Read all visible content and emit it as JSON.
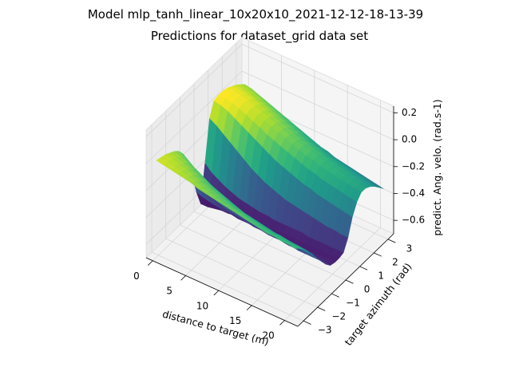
{
  "chart_data": {
    "type": "surface",
    "title": "Model mlp_tanh_linear_10x20x10_2021-12-12-18-13-39",
    "subtitle": "Predictions for dataset_grid data set",
    "xlabel": "distance to target (m)",
    "ylabel": "target azimuth (rad)",
    "zlabel": "predict. Ang. velo. (rad.s-1)",
    "xlim": [
      -1,
      22
    ],
    "ylim": [
      -3.4,
      3.4
    ],
    "zlim": [
      -0.7,
      0.25
    ],
    "x_ticks": [
      0,
      5,
      10,
      15,
      20
    ],
    "y_ticks": [
      -3,
      -2,
      -1,
      0,
      1,
      2,
      3
    ],
    "z_ticks": [
      -0.6,
      -0.4,
      -0.2,
      0.0,
      0.2
    ],
    "x_tick_labels": [
      "0",
      "5",
      "10",
      "15",
      "20"
    ],
    "y_tick_labels": [
      "−3",
      "−2",
      "−1",
      "0",
      "1",
      "2",
      "3"
    ],
    "z_tick_labels": [
      "−0.6",
      "−0.4",
      "−0.2",
      "0.0",
      "0.2"
    ],
    "x": [
      0,
      1.05,
      2.1,
      3.15,
      4.2,
      5.25,
      6.3,
      7.35,
      8.4,
      9.45,
      10.5,
      11.55,
      12.6,
      13.65,
      14.7,
      15.75,
      16.8,
      17.85,
      18.9,
      19.95,
      21
    ],
    "y": [
      -3.14,
      -2.83,
      -2.51,
      -2.2,
      -1.88,
      -1.57,
      -1.26,
      -0.94,
      -0.63,
      -0.31,
      0.0,
      0.31,
      0.63,
      0.94,
      1.26,
      1.57,
      1.88,
      2.2,
      2.51,
      2.83,
      3.14
    ],
    "z": [
      [
        0.02,
        0.01,
        0.0,
        -0.02,
        -0.04,
        -0.07,
        -0.12,
        -0.2,
        -0.33,
        -0.5,
        -0.62,
        -0.35,
        -0.05,
        0.05,
        0.06,
        0.06,
        0.05,
        0.03,
        0.01,
        -0.02,
        -0.05
      ],
      [
        0.01,
        0.0,
        -0.01,
        -0.03,
        -0.06,
        -0.1,
        -0.16,
        -0.25,
        -0.38,
        -0.52,
        -0.62,
        -0.4,
        -0.08,
        0.04,
        0.06,
        0.06,
        0.05,
        0.03,
        0.0,
        -0.03,
        -0.06
      ],
      [
        0.0,
        -0.01,
        -0.03,
        -0.05,
        -0.08,
        -0.13,
        -0.2,
        -0.29,
        -0.41,
        -0.53,
        -0.61,
        -0.43,
        -0.12,
        0.02,
        0.05,
        0.05,
        0.04,
        0.02,
        -0.01,
        -0.04,
        -0.08
      ],
      [
        -0.01,
        -0.02,
        -0.04,
        -0.07,
        -0.11,
        -0.16,
        -0.23,
        -0.33,
        -0.44,
        -0.54,
        -0.6,
        -0.46,
        -0.16,
        -0.01,
        0.03,
        0.04,
        0.03,
        0.01,
        -0.03,
        -0.06,
        -0.1
      ],
      [
        -0.02,
        -0.04,
        -0.06,
        -0.09,
        -0.13,
        -0.19,
        -0.26,
        -0.36,
        -0.46,
        -0.55,
        -0.6,
        -0.48,
        -0.2,
        -0.04,
        0.01,
        0.02,
        0.01,
        -0.01,
        -0.04,
        -0.08,
        -0.12
      ],
      [
        -0.03,
        -0.05,
        -0.08,
        -0.11,
        -0.16,
        -0.22,
        -0.29,
        -0.38,
        -0.48,
        -0.55,
        -0.59,
        -0.5,
        -0.24,
        -0.07,
        -0.02,
        0.0,
        -0.01,
        -0.03,
        -0.06,
        -0.1,
        -0.14
      ],
      [
        -0.05,
        -0.07,
        -0.1,
        -0.14,
        -0.18,
        -0.24,
        -0.32,
        -0.41,
        -0.49,
        -0.56,
        -0.59,
        -0.51,
        -0.28,
        -0.1,
        -0.04,
        -0.02,
        -0.03,
        -0.05,
        -0.08,
        -0.12,
        -0.16
      ],
      [
        -0.06,
        -0.08,
        -0.11,
        -0.15,
        -0.2,
        -0.27,
        -0.34,
        -0.43,
        -0.5,
        -0.56,
        -0.58,
        -0.52,
        -0.31,
        -0.13,
        -0.07,
        -0.04,
        -0.05,
        -0.07,
        -0.1,
        -0.14,
        -0.18
      ],
      [
        -0.07,
        -0.1,
        -0.13,
        -0.17,
        -0.22,
        -0.29,
        -0.36,
        -0.44,
        -0.51,
        -0.56,
        -0.58,
        -0.53,
        -0.34,
        -0.16,
        -0.09,
        -0.06,
        -0.07,
        -0.09,
        -0.12,
        -0.16,
        -0.2
      ],
      [
        -0.08,
        -0.11,
        -0.14,
        -0.19,
        -0.24,
        -0.31,
        -0.38,
        -0.45,
        -0.52,
        -0.56,
        -0.57,
        -0.53,
        -0.36,
        -0.19,
        -0.11,
        -0.08,
        -0.09,
        -0.11,
        -0.14,
        -0.18,
        -0.22
      ],
      [
        -0.09,
        -0.12,
        -0.16,
        -0.2,
        -0.26,
        -0.32,
        -0.39,
        -0.46,
        -0.52,
        -0.56,
        -0.57,
        -0.54,
        -0.38,
        -0.21,
        -0.13,
        -0.1,
        -0.11,
        -0.13,
        -0.16,
        -0.2,
        -0.24
      ],
      [
        -0.1,
        -0.13,
        -0.17,
        -0.22,
        -0.27,
        -0.33,
        -0.4,
        -0.47,
        -0.53,
        -0.56,
        -0.57,
        -0.54,
        -0.4,
        -0.23,
        -0.15,
        -0.12,
        -0.12,
        -0.14,
        -0.18,
        -0.22,
        -0.26
      ],
      [
        -0.11,
        -0.14,
        -0.18,
        -0.23,
        -0.28,
        -0.34,
        -0.41,
        -0.48,
        -0.53,
        -0.56,
        -0.56,
        -0.54,
        -0.41,
        -0.25,
        -0.17,
        -0.14,
        -0.14,
        -0.16,
        -0.19,
        -0.23,
        -0.27
      ],
      [
        -0.12,
        -0.15,
        -0.19,
        -0.24,
        -0.29,
        -0.35,
        -0.42,
        -0.48,
        -0.53,
        -0.56,
        -0.56,
        -0.54,
        -0.42,
        -0.27,
        -0.19,
        -0.15,
        -0.15,
        -0.17,
        -0.21,
        -0.25,
        -0.29
      ],
      [
        -0.13,
        -0.16,
        -0.2,
        -0.25,
        -0.3,
        -0.36,
        -0.43,
        -0.49,
        -0.54,
        -0.56,
        -0.56,
        -0.54,
        -0.43,
        -0.28,
        -0.2,
        -0.17,
        -0.17,
        -0.19,
        -0.22,
        -0.26,
        -0.3
      ],
      [
        -0.14,
        -0.17,
        -0.21,
        -0.26,
        -0.31,
        -0.37,
        -0.43,
        -0.49,
        -0.54,
        -0.56,
        -0.56,
        -0.55,
        -0.44,
        -0.3,
        -0.22,
        -0.18,
        -0.18,
        -0.2,
        -0.23,
        -0.27,
        -0.31
      ],
      [
        -0.15,
        -0.18,
        -0.22,
        -0.26,
        -0.32,
        -0.38,
        -0.44,
        -0.5,
        -0.54,
        -0.56,
        -0.56,
        -0.55,
        -0.45,
        -0.31,
        -0.23,
        -0.19,
        -0.19,
        -0.21,
        -0.24,
        -0.28,
        -0.32
      ],
      [
        -0.15,
        -0.18,
        -0.22,
        -0.27,
        -0.32,
        -0.38,
        -0.44,
        -0.5,
        -0.54,
        -0.56,
        -0.56,
        -0.55,
        -0.46,
        -0.32,
        -0.24,
        -0.2,
        -0.2,
        -0.22,
        -0.25,
        -0.29,
        -0.33
      ],
      [
        -0.16,
        -0.19,
        -0.23,
        -0.28,
        -0.33,
        -0.39,
        -0.45,
        -0.5,
        -0.54,
        -0.56,
        -0.56,
        -0.55,
        -0.46,
        -0.33,
        -0.25,
        -0.21,
        -0.21,
        -0.23,
        -0.26,
        -0.3,
        -0.34
      ],
      [
        -0.16,
        -0.19,
        -0.23,
        -0.28,
        -0.33,
        -0.39,
        -0.45,
        -0.5,
        -0.54,
        -0.56,
        -0.56,
        -0.55,
        -0.47,
        -0.34,
        -0.26,
        -0.22,
        -0.22,
        -0.24,
        -0.27,
        -0.31,
        -0.35
      ],
      [
        -0.17,
        -0.2,
        -0.24,
        -0.29,
        -0.34,
        -0.4,
        -0.45,
        -0.51,
        -0.55,
        -0.56,
        -0.56,
        -0.55,
        -0.47,
        -0.35,
        -0.27,
        -0.23,
        -0.23,
        -0.25,
        -0.28,
        -0.32,
        -0.36
      ]
    ],
    "colormap": "viridis",
    "grid": true,
    "pane_color": "#f2f2f2",
    "grid_color": "#d6d6d6"
  }
}
